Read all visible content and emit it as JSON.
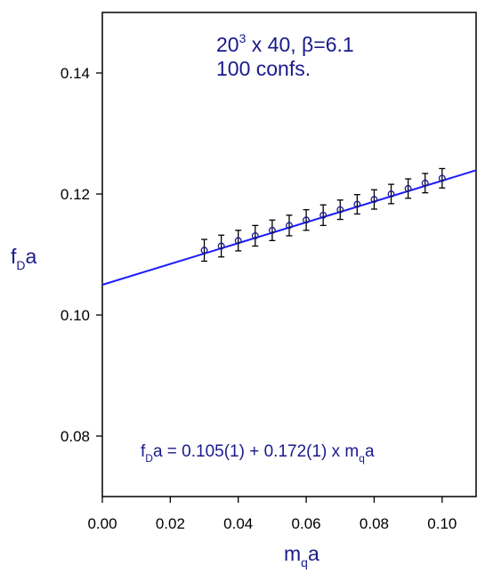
{
  "chart_data": {
    "type": "scatter",
    "xlabel": {
      "main": "m",
      "sub": "q",
      "rest": "a"
    },
    "ylabel": {
      "main": "f",
      "sub": "D",
      "rest": "a"
    },
    "xlim": [
      0.0,
      0.11
    ],
    "ylim": [
      0.07,
      0.15
    ],
    "xticks": [
      "0.00",
      "0.02",
      "0.04",
      "0.06",
      "0.08",
      "0.10"
    ],
    "yticks": [
      "0.08",
      "0.10",
      "0.12",
      "0.14"
    ],
    "annotations": {
      "lattice_base": "20",
      "lattice_exp": "3",
      "lattice_rest": " x 40, β=6.1",
      "confs": "100 confs.",
      "fit_f": "f",
      "fit_sub": "D",
      "fit_mid": "a = 0.105(1) + 0.172(1) x m",
      "fit_sub2": "q",
      "fit_end": "a"
    },
    "points": {
      "x": [
        0.03,
        0.035,
        0.04,
        0.045,
        0.05,
        0.055,
        0.06,
        0.065,
        0.07,
        0.075,
        0.08,
        0.085,
        0.09,
        0.095,
        0.1
      ],
      "y": [
        0.1107,
        0.1114,
        0.1123,
        0.1131,
        0.114,
        0.1148,
        0.1157,
        0.1165,
        0.1174,
        0.1183,
        0.1191,
        0.12,
        0.1209,
        0.1218,
        0.1226
      ],
      "err": [
        0.0018,
        0.0018,
        0.0017,
        0.0017,
        0.0017,
        0.0017,
        0.0017,
        0.0017,
        0.0016,
        0.0016,
        0.0016,
        0.0016,
        0.0016,
        0.0016,
        0.0016
      ]
    },
    "fit_line": {
      "intercept": 0.105,
      "slope": 0.172
    },
    "colors": {
      "fit": "#1a1aff",
      "points": "#1a1a8c",
      "error_bars": "#000000",
      "labels": "#1a1a8c"
    },
    "grid": false
  }
}
